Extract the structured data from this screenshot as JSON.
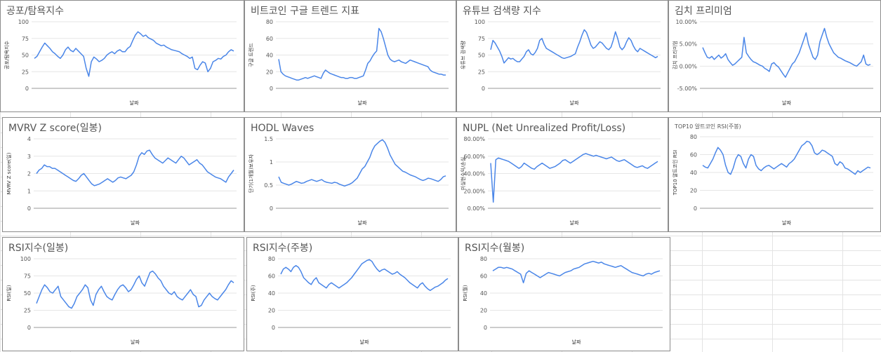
{
  "colors": {
    "series": "#4a86e8",
    "grid": "#e6e6e6",
    "baseline": "#9a9a9a",
    "text": "#555555"
  },
  "chart_data": [
    {
      "id": "fear-greed",
      "type": "line",
      "title": "공포/탐욕지수",
      "xlabel": "날짜",
      "ylabel": "공포/탐욕지수",
      "ylim": [
        0,
        100
      ],
      "yticks": [
        "0",
        "25",
        "50",
        "75",
        "100"
      ],
      "series": [
        {
          "values": [
            45,
            48,
            55,
            62,
            68,
            64,
            60,
            55,
            52,
            48,
            45,
            50,
            58,
            62,
            57,
            55,
            60,
            56,
            52,
            48,
            30,
            18,
            40,
            47,
            44,
            40,
            42,
            45,
            50,
            53,
            55,
            52,
            56,
            58,
            55,
            55,
            60,
            63,
            72,
            80,
            85,
            82,
            78,
            80,
            76,
            74,
            72,
            68,
            66,
            64,
            65,
            62,
            60,
            58,
            57,
            56,
            55,
            52,
            50,
            48,
            45,
            47,
            30,
            28,
            35,
            40,
            38,
            25,
            30,
            40,
            42,
            45,
            44,
            48,
            50,
            55,
            58,
            56
          ]
        }
      ]
    },
    {
      "id": "google-trends",
      "type": "line",
      "title": "비트코인 구글 트렌드 지표",
      "xlabel": "날짜",
      "ylabel": "구글 트렌드",
      "ylim": [
        0,
        80
      ],
      "yticks": [
        "0",
        "20",
        "40",
        "60",
        "80"
      ],
      "series": [
        {
          "values": [
            35,
            20,
            17,
            15,
            14,
            13,
            12,
            11,
            10,
            10,
            11,
            12,
            13,
            12,
            13,
            14,
            15,
            14,
            13,
            12,
            18,
            22,
            20,
            18,
            17,
            16,
            15,
            14,
            13,
            13,
            12,
            12,
            13,
            13,
            12,
            12,
            13,
            14,
            15,
            22,
            30,
            33,
            38,
            42,
            45,
            72,
            68,
            60,
            50,
            40,
            35,
            33,
            32,
            33,
            34,
            32,
            31,
            30,
            32,
            34,
            33,
            32,
            31,
            30,
            29,
            28,
            27,
            26,
            22,
            20,
            19,
            18,
            17,
            17,
            16,
            16
          ]
        }
      ]
    },
    {
      "id": "youtube-search",
      "type": "line",
      "title": "유튜브 검색량 지수",
      "xlabel": "날짜",
      "ylabel": "유튜브 검색량",
      "ylim": [
        0,
        100
      ],
      "yticks": [
        "0",
        "25",
        "50",
        "75",
        "100"
      ],
      "series": [
        {
          "values": [
            58,
            72,
            68,
            62,
            56,
            48,
            38,
            42,
            46,
            44,
            45,
            42,
            40,
            40,
            44,
            48,
            55,
            58,
            52,
            50,
            54,
            60,
            72,
            75,
            66,
            60,
            58,
            56,
            54,
            52,
            50,
            48,
            46,
            45,
            46,
            47,
            48,
            50,
            52,
            62,
            70,
            80,
            88,
            84,
            75,
            65,
            60,
            62,
            66,
            70,
            68,
            64,
            60,
            58,
            62,
            72,
            85,
            75,
            62,
            58,
            62,
            70,
            76,
            72,
            64,
            58,
            55,
            60,
            58,
            56,
            54,
            52,
            50,
            48,
            46,
            48
          ]
        }
      ]
    },
    {
      "id": "kimchi-premium",
      "type": "line",
      "title": "김치 프리미엄",
      "xlabel": "날짜",
      "ylabel": "김치 프리미엄",
      "ylim": [
        -5,
        10
      ],
      "yticks": [
        "-5.00%",
        "0.00%",
        "5.00%",
        "10.00%"
      ],
      "series": [
        {
          "values": [
            4.2,
            3.0,
            2.0,
            1.8,
            2.2,
            1.5,
            2.0,
            2.5,
            1.8,
            2.2,
            2.8,
            1.5,
            0.8,
            0.2,
            0.5,
            1.0,
            1.5,
            2.0,
            6.5,
            3.0,
            2.2,
            1.5,
            1.0,
            0.8,
            0.5,
            0.2,
            0.0,
            -0.5,
            -0.8,
            -1.2,
            0.5,
            0.8,
            0.2,
            -0.2,
            -1.0,
            -1.8,
            -2.5,
            -1.5,
            -0.5,
            0.5,
            1.0,
            2.0,
            3.0,
            4.5,
            6.0,
            7.5,
            5.0,
            3.5,
            2.0,
            1.5,
            2.5,
            5.5,
            7.0,
            8.5,
            6.5,
            5.0,
            4.0,
            3.0,
            2.5,
            2.0,
            1.8,
            1.5,
            1.2,
            1.0,
            0.8,
            0.5,
            0.2,
            0.0,
            0.5,
            1.0,
            2.5,
            0.5,
            0.2,
            0.4
          ]
        }
      ]
    },
    {
      "id": "mvrv-z",
      "type": "line",
      "title": "MVRV Z score(일봉)",
      "xlabel": "날짜",
      "ylabel": "MVRV Z score(일)",
      "ylim": [
        0,
        4
      ],
      "yticks": [
        "0",
        "1",
        "2",
        "3",
        "4"
      ],
      "series": [
        {
          "values": [
            2.0,
            2.2,
            2.3,
            2.5,
            2.4,
            2.4,
            2.3,
            2.3,
            2.2,
            2.1,
            2.0,
            1.9,
            1.8,
            1.7,
            1.6,
            1.55,
            1.7,
            1.9,
            2.0,
            1.8,
            1.6,
            1.4,
            1.3,
            1.35,
            1.4,
            1.5,
            1.6,
            1.7,
            1.6,
            1.5,
            1.6,
            1.75,
            1.8,
            1.75,
            1.7,
            1.8,
            1.9,
            2.1,
            2.5,
            3.0,
            3.2,
            3.1,
            3.3,
            3.35,
            3.1,
            2.9,
            2.8,
            2.7,
            2.6,
            2.75,
            2.9,
            2.8,
            2.7,
            2.6,
            2.8,
            3.0,
            2.9,
            2.7,
            2.5,
            2.6,
            2.7,
            2.8,
            2.6,
            2.5,
            2.3,
            2.1,
            2.0,
            1.9,
            1.8,
            1.75,
            1.7,
            1.6,
            1.5,
            1.8,
            2.0,
            2.2
          ]
        }
      ]
    },
    {
      "id": "hodl-waves",
      "type": "line",
      "title": "HODL Waves",
      "xlabel": "날짜",
      "ylabel": "단기(1개월)보유자",
      "ylim": [
        0,
        1.5
      ],
      "yticks": [
        "0",
        "0.5",
        "1",
        "1.5"
      ],
      "series": [
        {
          "values": [
            0.68,
            0.56,
            0.54,
            0.52,
            0.5,
            0.52,
            0.55,
            0.58,
            0.56,
            0.54,
            0.55,
            0.58,
            0.6,
            0.62,
            0.6,
            0.58,
            0.6,
            0.62,
            0.58,
            0.56,
            0.55,
            0.54,
            0.56,
            0.55,
            0.52,
            0.5,
            0.48,
            0.5,
            0.52,
            0.55,
            0.6,
            0.65,
            0.75,
            0.85,
            0.9,
            1.0,
            1.1,
            1.25,
            1.35,
            1.4,
            1.45,
            1.48,
            1.42,
            1.3,
            1.15,
            1.05,
            0.95,
            0.9,
            0.85,
            0.8,
            0.78,
            0.75,
            0.72,
            0.7,
            0.68,
            0.65,
            0.62,
            0.6,
            0.62,
            0.65,
            0.64,
            0.62,
            0.6,
            0.58,
            0.62,
            0.68,
            0.7
          ]
        }
      ]
    },
    {
      "id": "nupl",
      "type": "line",
      "title": "NUPL (Net Unrealized Profit/Loss)",
      "xlabel": "날짜",
      "ylabel": "미실현수익/손실",
      "ylim": [
        0,
        80
      ],
      "yticks": [
        "0.00%",
        "20.00%",
        "40.00%",
        "60.00%",
        "80.00%"
      ],
      "series": [
        {
          "values": [
            52,
            7,
            56,
            58,
            57,
            56,
            55,
            54,
            52,
            50,
            48,
            46,
            48,
            52,
            50,
            48,
            46,
            45,
            48,
            50,
            52,
            50,
            48,
            46,
            47,
            48,
            50,
            52,
            55,
            56,
            54,
            52,
            54,
            56,
            58,
            60,
            62,
            63,
            62,
            61,
            60,
            61,
            60,
            59,
            58,
            57,
            58,
            59,
            57,
            55,
            54,
            55,
            56,
            54,
            52,
            50,
            48,
            47,
            48,
            49,
            47,
            46,
            48,
            50,
            52,
            54
          ]
        }
      ]
    },
    {
      "id": "top10-altcoin-rsi",
      "type": "line",
      "title": "TOP10 알트코인 RSI(주봉)",
      "xlabel": "날짜",
      "ylabel": "TOP10 알트코인 RSI",
      "ylim": [
        0,
        80
      ],
      "yticks": [
        "0",
        "20",
        "40",
        "60",
        "80"
      ],
      "series": [
        {
          "values": [
            48,
            46,
            45,
            50,
            55,
            62,
            68,
            65,
            60,
            48,
            40,
            38,
            45,
            55,
            60,
            58,
            50,
            45,
            55,
            60,
            58,
            48,
            44,
            42,
            45,
            47,
            48,
            46,
            44,
            46,
            48,
            50,
            48,
            46,
            50,
            52,
            55,
            60,
            65,
            70,
            72,
            75,
            74,
            70,
            62,
            60,
            62,
            65,
            64,
            62,
            60,
            58,
            50,
            48,
            52,
            50,
            45,
            44,
            42,
            40,
            38,
            42,
            40,
            42,
            44,
            46,
            45
          ]
        }
      ]
    },
    {
      "id": "rsi-daily",
      "type": "line",
      "title": "RSI지수(일봉)",
      "xlabel": "날짜",
      "ylabel": "RSI(일)",
      "ylim": [
        0,
        100
      ],
      "yticks": [
        "0",
        "25",
        "50",
        "75",
        "100"
      ],
      "series": [
        {
          "values": [
            35,
            45,
            55,
            62,
            58,
            52,
            50,
            55,
            60,
            45,
            40,
            35,
            30,
            28,
            35,
            45,
            50,
            55,
            62,
            58,
            40,
            32,
            48,
            55,
            60,
            52,
            45,
            42,
            40,
            48,
            55,
            60,
            62,
            58,
            52,
            55,
            62,
            70,
            75,
            65,
            60,
            70,
            80,
            82,
            78,
            72,
            68,
            60,
            55,
            50,
            48,
            52,
            45,
            42,
            40,
            45,
            50,
            55,
            48,
            45,
            30,
            32,
            40,
            45,
            50,
            45,
            42,
            40,
            45,
            50,
            55,
            62,
            68,
            65
          ]
        }
      ]
    },
    {
      "id": "rsi-weekly",
      "type": "line",
      "title": "RSI지수(주봉)",
      "xlabel": "날짜",
      "ylabel": "RSI(주)",
      "ylim": [
        0,
        80
      ],
      "yticks": [
        "0",
        "20",
        "40",
        "60",
        "80"
      ],
      "series": [
        {
          "values": [
            62,
            68,
            70,
            68,
            65,
            70,
            72,
            70,
            65,
            58,
            55,
            52,
            50,
            55,
            58,
            52,
            50,
            48,
            46,
            50,
            52,
            50,
            48,
            46,
            48,
            50,
            52,
            55,
            58,
            62,
            66,
            70,
            74,
            76,
            78,
            79,
            77,
            72,
            68,
            65,
            67,
            68,
            66,
            64,
            62,
            63,
            65,
            62,
            60,
            58,
            55,
            52,
            50,
            48,
            46,
            50,
            52,
            48,
            45,
            43,
            45,
            47,
            48,
            50,
            52,
            55,
            57
          ]
        }
      ]
    },
    {
      "id": "rsi-monthly",
      "type": "line",
      "title": "RSI지수(월봉)",
      "xlabel": "날짜",
      "ylabel": "RSI(월)",
      "ylim": [
        0,
        80
      ],
      "yticks": [
        "0",
        "20",
        "40",
        "60",
        "80"
      ],
      "series": [
        {
          "values": [
            66,
            68,
            70,
            70,
            69,
            70,
            69,
            68,
            66,
            64,
            62,
            52,
            63,
            66,
            64,
            62,
            60,
            58,
            60,
            62,
            64,
            63,
            62,
            61,
            60,
            62,
            64,
            65,
            66,
            68,
            69,
            70,
            72,
            74,
            75,
            76,
            77,
            76,
            75,
            76,
            74,
            73,
            72,
            71,
            70,
            71,
            72,
            70,
            68,
            66,
            64,
            63,
            62,
            61,
            60,
            62,
            63,
            62,
            64,
            65,
            66
          ]
        }
      ]
    }
  ]
}
